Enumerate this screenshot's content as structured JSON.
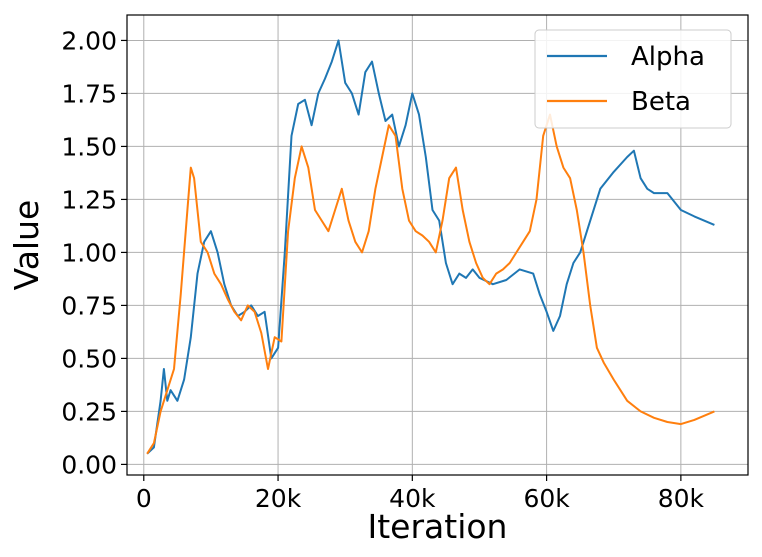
{
  "chart_data": {
    "type": "line",
    "title": "",
    "xlabel": "Iteration",
    "ylabel": "Value",
    "xlim": [
      -2500,
      90000
    ],
    "ylim": [
      -0.05,
      2.12
    ],
    "x_ticks": [
      0,
      20000,
      40000,
      60000,
      80000
    ],
    "x_tick_labels": [
      "0",
      "20k",
      "40k",
      "60k",
      "80k"
    ],
    "y_ticks": [
      0.0,
      0.25,
      0.5,
      0.75,
      1.0,
      1.25,
      1.5,
      1.75,
      2.0
    ],
    "y_tick_labels": [
      "0.00",
      "0.25",
      "0.50",
      "0.75",
      "1.00",
      "1.25",
      "1.50",
      "1.75",
      "2.00"
    ],
    "grid": true,
    "legend_position": "top-right",
    "series": [
      {
        "name": "Alpha",
        "color": "#1f77b4",
        "x": [
          500,
          1500,
          2500,
          3000,
          3500,
          4000,
          5000,
          6000,
          7000,
          8000,
          9000,
          10000,
          11000,
          12000,
          13000,
          14000,
          15000,
          16000,
          17000,
          18000,
          19000,
          20000,
          21000,
          22000,
          23000,
          24000,
          25000,
          26000,
          27000,
          28000,
          29000,
          30000,
          31000,
          32000,
          33000,
          34000,
          35000,
          36000,
          37000,
          38000,
          39000,
          40000,
          41000,
          42000,
          43000,
          44000,
          45000,
          46000,
          47000,
          48000,
          49000,
          50000,
          52000,
          54000,
          56000,
          58000,
          59000,
          60000,
          61000,
          62000,
          63000,
          64000,
          65000,
          66000,
          68000,
          70000,
          72000,
          73000,
          74000,
          75000,
          76000,
          78000,
          80000,
          82000,
          85000
        ],
        "y": [
          0.05,
          0.08,
          0.3,
          0.45,
          0.3,
          0.35,
          0.3,
          0.4,
          0.6,
          0.9,
          1.05,
          1.1,
          1.0,
          0.85,
          0.75,
          0.7,
          0.72,
          0.75,
          0.7,
          0.72,
          0.5,
          0.55,
          1.0,
          1.55,
          1.7,
          1.72,
          1.6,
          1.75,
          1.82,
          1.9,
          2.0,
          1.8,
          1.75,
          1.65,
          1.85,
          1.9,
          1.75,
          1.62,
          1.65,
          1.5,
          1.6,
          1.75,
          1.65,
          1.45,
          1.2,
          1.15,
          0.95,
          0.85,
          0.9,
          0.88,
          0.92,
          0.88,
          0.85,
          0.87,
          0.92,
          0.9,
          0.8,
          0.72,
          0.63,
          0.7,
          0.85,
          0.95,
          1.0,
          1.1,
          1.3,
          1.38,
          1.45,
          1.48,
          1.35,
          1.3,
          1.28,
          1.28,
          1.2,
          1.17,
          1.13
        ]
      },
      {
        "name": "Beta",
        "color": "#ff7f0e",
        "x": [
          500,
          1500,
          2500,
          3500,
          4500,
          5500,
          6500,
          7000,
          7500,
          8500,
          9500,
          10500,
          11500,
          12500,
          13500,
          14500,
          15500,
          16500,
          17500,
          18500,
          19500,
          20500,
          21500,
          22500,
          23500,
          24500,
          25500,
          26500,
          27500,
          28500,
          29500,
          30500,
          31500,
          32500,
          33500,
          34500,
          35500,
          36500,
          37500,
          38500,
          39500,
          40500,
          41500,
          42500,
          43500,
          44500,
          45500,
          46500,
          47500,
          48500,
          49500,
          50500,
          51500,
          52500,
          53500,
          54500,
          55500,
          56500,
          57500,
          58500,
          59500,
          60500,
          61500,
          62500,
          63500,
          64500,
          65500,
          66500,
          67500,
          68500,
          70000,
          72000,
          74000,
          76000,
          78000,
          80000,
          82000,
          85000
        ],
        "y": [
          0.05,
          0.1,
          0.25,
          0.35,
          0.45,
          0.8,
          1.2,
          1.4,
          1.35,
          1.05,
          1.0,
          0.9,
          0.85,
          0.78,
          0.72,
          0.68,
          0.75,
          0.72,
          0.62,
          0.45,
          0.6,
          0.58,
          1.1,
          1.35,
          1.5,
          1.4,
          1.2,
          1.15,
          1.1,
          1.2,
          1.3,
          1.15,
          1.05,
          1.0,
          1.1,
          1.3,
          1.45,
          1.6,
          1.55,
          1.3,
          1.15,
          1.1,
          1.08,
          1.05,
          1.0,
          1.15,
          1.35,
          1.4,
          1.2,
          1.05,
          0.95,
          0.88,
          0.85,
          0.9,
          0.92,
          0.95,
          1.0,
          1.05,
          1.1,
          1.25,
          1.55,
          1.65,
          1.5,
          1.4,
          1.35,
          1.2,
          1.0,
          0.75,
          0.55,
          0.48,
          0.4,
          0.3,
          0.25,
          0.22,
          0.2,
          0.19,
          0.21,
          0.25
        ]
      }
    ]
  }
}
